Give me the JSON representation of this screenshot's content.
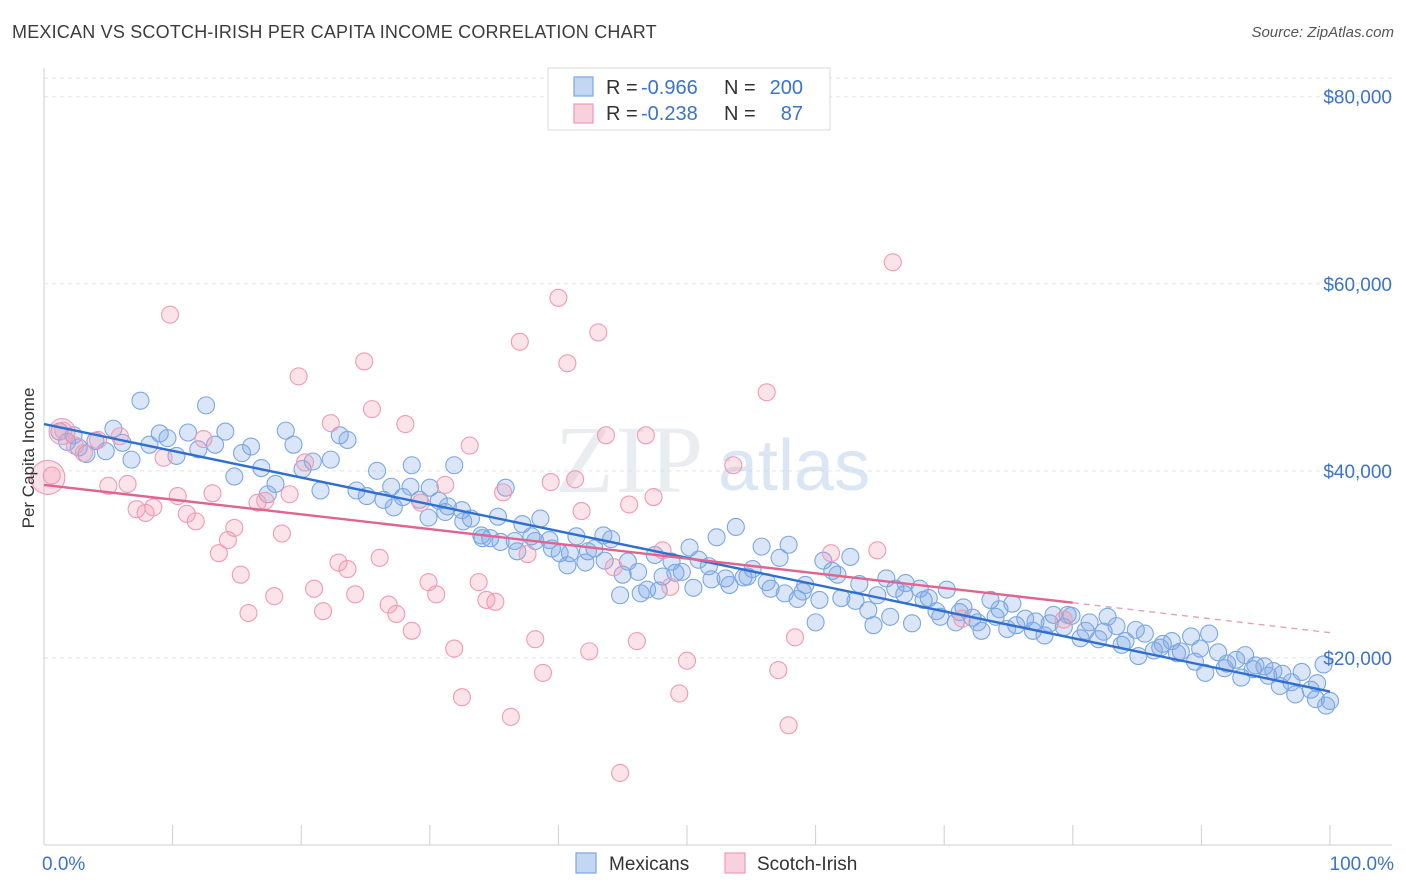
{
  "title": "MEXICAN VS SCOTCH-IRISH PER CAPITA INCOME CORRELATION CHART",
  "source": "Source: ZipAtlas.com",
  "watermark": {
    "zip": "ZIP",
    "atlas": "atlas"
  },
  "legend_top": [
    {
      "r_label": "R =",
      "r_value": "-0.966",
      "n_label": "N =",
      "n_value": "200",
      "color": "#7ba7e3"
    },
    {
      "r_label": "R =",
      "r_value": "-0.238",
      "n_label": "N =",
      "n_value": "87",
      "color": "#f09ab5"
    }
  ],
  "legend_bottom": [
    {
      "label": "Mexicans",
      "color": "#7ba7e3"
    },
    {
      "label": "Scotch-Irish",
      "color": "#f09ab5"
    }
  ],
  "chart_data": {
    "type": "scatter",
    "title": "MEXICAN VS SCOTCH-IRISH PER CAPITA INCOME CORRELATION CHART",
    "xlabel": "",
    "ylabel": "Per Capita Income",
    "xlim": [
      0,
      100
    ],
    "ylim": [
      0,
      82000
    ],
    "x_tick_labels": [
      "0.0%",
      "100.0%"
    ],
    "y_ticks": [
      20000,
      40000,
      60000,
      80000
    ],
    "y_tick_labels": [
      "$20,000",
      "$40,000",
      "$60,000",
      "$80,000"
    ],
    "grid": true,
    "legend_position": "top-center",
    "series": [
      {
        "name": "Mexicans",
        "color": "#7ba7e3",
        "trend": {
          "x": [
            0,
            100
          ],
          "y": [
            45000,
            16400
          ]
        },
        "points": [
          [
            1.2,
            44200
          ],
          [
            1.8,
            43100
          ],
          [
            2.3,
            43800
          ],
          [
            2.7,
            42500
          ],
          [
            3.3,
            41800
          ],
          [
            4.0,
            43200
          ],
          [
            4.8,
            42100
          ],
          [
            5.4,
            44500
          ],
          [
            6.1,
            43000
          ],
          [
            6.8,
            41200
          ],
          [
            7.5,
            47500
          ],
          [
            8.2,
            42800
          ],
          [
            9.0,
            44000
          ],
          [
            9.6,
            43500
          ],
          [
            10.3,
            41600
          ],
          [
            11.2,
            44100
          ],
          [
            12.0,
            42300
          ],
          [
            12.6,
            47000
          ],
          [
            13.3,
            42800
          ],
          [
            14.1,
            44200
          ],
          [
            14.8,
            39400
          ],
          [
            15.4,
            41900
          ],
          [
            16.1,
            42600
          ],
          [
            16.9,
            40300
          ],
          [
            17.4,
            37500
          ],
          [
            18.0,
            38600
          ],
          [
            18.8,
            44300
          ],
          [
            19.4,
            42800
          ],
          [
            20.1,
            40200
          ],
          [
            20.9,
            41000
          ],
          [
            21.5,
            37900
          ],
          [
            22.3,
            41200
          ],
          [
            23.0,
            43800
          ],
          [
            23.6,
            43300
          ],
          [
            24.3,
            37900
          ],
          [
            25.1,
            37300
          ],
          [
            25.9,
            40000
          ],
          [
            26.4,
            36900
          ],
          [
            27.2,
            36100
          ],
          [
            27.9,
            37200
          ],
          [
            28.6,
            40600
          ],
          [
            29.2,
            36900
          ],
          [
            30.0,
            38200
          ],
          [
            30.7,
            36800
          ],
          [
            31.4,
            36200
          ],
          [
            31.9,
            40600
          ],
          [
            32.5,
            35800
          ],
          [
            33.2,
            34900
          ],
          [
            34.0,
            33100
          ],
          [
            34.7,
            32800
          ],
          [
            35.3,
            35100
          ],
          [
            35.9,
            38200
          ],
          [
            36.6,
            32500
          ],
          [
            37.2,
            34300
          ],
          [
            37.9,
            33000
          ],
          [
            38.6,
            34900
          ],
          [
            39.3,
            32600
          ],
          [
            40.1,
            31200
          ],
          [
            40.7,
            29900
          ],
          [
            41.4,
            33000
          ],
          [
            42.1,
            30200
          ],
          [
            42.8,
            31700
          ],
          [
            43.5,
            33100
          ],
          [
            44.1,
            32700
          ],
          [
            44.8,
            26700
          ],
          [
            45.4,
            30300
          ],
          [
            46.2,
            29200
          ],
          [
            46.9,
            27300
          ],
          [
            47.5,
            31000
          ],
          [
            48.1,
            28700
          ],
          [
            48.8,
            30300
          ],
          [
            49.6,
            29200
          ],
          [
            50.2,
            31800
          ],
          [
            50.9,
            30500
          ],
          [
            51.7,
            29800
          ],
          [
            52.3,
            32900
          ],
          [
            53.0,
            28500
          ],
          [
            53.8,
            34000
          ],
          [
            54.4,
            28600
          ],
          [
            55.1,
            29500
          ],
          [
            55.8,
            31900
          ],
          [
            56.5,
            27400
          ],
          [
            57.2,
            30700
          ],
          [
            57.9,
            32100
          ],
          [
            58.6,
            26300
          ],
          [
            59.2,
            27800
          ],
          [
            60.0,
            23800
          ],
          [
            60.6,
            30400
          ],
          [
            61.3,
            29300
          ],
          [
            62.0,
            26400
          ],
          [
            62.7,
            30800
          ],
          [
            63.4,
            27900
          ],
          [
            64.1,
            25100
          ],
          [
            64.8,
            26700
          ],
          [
            65.5,
            28500
          ],
          [
            66.2,
            27400
          ],
          [
            66.9,
            26800
          ],
          [
            67.5,
            23700
          ],
          [
            68.1,
            27400
          ],
          [
            68.8,
            26400
          ],
          [
            69.4,
            25000
          ],
          [
            70.2,
            27300
          ],
          [
            70.9,
            23800
          ],
          [
            71.5,
            25400
          ],
          [
            72.2,
            24300
          ],
          [
            72.9,
            22900
          ],
          [
            73.6,
            26200
          ],
          [
            74.3,
            25200
          ],
          [
            74.9,
            23100
          ],
          [
            75.6,
            23500
          ],
          [
            76.3,
            24200
          ],
          [
            77.1,
            23900
          ],
          [
            77.8,
            22400
          ],
          [
            78.5,
            24600
          ],
          [
            79.3,
            23300
          ],
          [
            79.9,
            24500
          ],
          [
            80.6,
            22100
          ],
          [
            81.3,
            23800
          ],
          [
            82.0,
            22000
          ],
          [
            82.7,
            24400
          ],
          [
            83.4,
            23400
          ],
          [
            84.1,
            21800
          ],
          [
            84.9,
            23000
          ],
          [
            85.6,
            22600
          ],
          [
            86.3,
            20800
          ],
          [
            87.0,
            21500
          ],
          [
            87.7,
            21800
          ],
          [
            88.4,
            20700
          ],
          [
            89.2,
            22300
          ],
          [
            89.9,
            21000
          ],
          [
            90.6,
            22600
          ],
          [
            91.3,
            20600
          ],
          [
            92.0,
            19400
          ],
          [
            92.7,
            19800
          ],
          [
            93.4,
            20300
          ],
          [
            94.2,
            19200
          ],
          [
            94.9,
            19100
          ],
          [
            95.6,
            18600
          ],
          [
            96.3,
            18300
          ],
          [
            97.0,
            17400
          ],
          [
            97.8,
            18500
          ],
          [
            98.5,
            16600
          ],
          [
            99.0,
            17300
          ],
          [
            99.5,
            19300
          ],
          [
            100.0,
            15400
          ],
          [
            99.7,
            14900
          ],
          [
            98.9,
            15600
          ],
          [
            97.3,
            16100
          ],
          [
            96.1,
            17000
          ],
          [
            95.2,
            18100
          ],
          [
            94.0,
            18800
          ],
          [
            93.1,
            17900
          ],
          [
            91.8,
            18900
          ],
          [
            90.3,
            18400
          ],
          [
            89.5,
            19600
          ],
          [
            88.1,
            20500
          ],
          [
            86.8,
            21100
          ],
          [
            85.1,
            20200
          ],
          [
            83.8,
            21400
          ],
          [
            82.4,
            22800
          ],
          [
            81.0,
            22900
          ],
          [
            79.6,
            24600
          ],
          [
            78.2,
            23700
          ],
          [
            76.9,
            22900
          ],
          [
            75.3,
            25800
          ],
          [
            74.0,
            24400
          ],
          [
            72.6,
            23800
          ],
          [
            71.2,
            24900
          ],
          [
            69.7,
            24400
          ],
          [
            68.4,
            26200
          ],
          [
            67.0,
            28000
          ],
          [
            65.8,
            24400
          ],
          [
            64.5,
            23500
          ],
          [
            63.1,
            26100
          ],
          [
            61.7,
            28900
          ],
          [
            60.3,
            26200
          ],
          [
            59.0,
            27100
          ],
          [
            57.6,
            26900
          ],
          [
            56.2,
            28100
          ],
          [
            54.7,
            28700
          ],
          [
            53.3,
            27800
          ],
          [
            51.9,
            28400
          ],
          [
            50.5,
            27500
          ],
          [
            49.1,
            29100
          ],
          [
            47.8,
            27200
          ],
          [
            46.4,
            26900
          ],
          [
            45.0,
            28900
          ],
          [
            43.6,
            30400
          ],
          [
            42.3,
            31400
          ],
          [
            40.9,
            31200
          ],
          [
            39.5,
            31700
          ],
          [
            38.2,
            32500
          ],
          [
            36.8,
            31400
          ],
          [
            35.5,
            32400
          ],
          [
            34.1,
            32800
          ],
          [
            32.6,
            34600
          ],
          [
            31.2,
            35600
          ],
          [
            29.9,
            35000
          ],
          [
            28.5,
            38300
          ],
          [
            27.0,
            38300
          ]
        ]
      },
      {
        "name": "Scotch-Irish",
        "color": "#f09ab5",
        "trend": {
          "x": [
            0,
            80
          ],
          "y": [
            38500,
            25900
          ]
        },
        "trend_dashed": {
          "x": [
            80,
            100
          ],
          "y": [
            25900,
            22700
          ]
        },
        "points": [
          [
            0.6,
            39500
          ],
          [
            1.5,
            44300
          ],
          [
            2.4,
            42700
          ],
          [
            3.1,
            41900
          ],
          [
            4.2,
            43300
          ],
          [
            5.0,
            38400
          ],
          [
            5.9,
            43700
          ],
          [
            6.5,
            38600
          ],
          [
            7.2,
            35900
          ],
          [
            7.9,
            35500
          ],
          [
            8.5,
            36100
          ],
          [
            9.3,
            41400
          ],
          [
            9.8,
            56700
          ],
          [
            10.4,
            37300
          ],
          [
            11.1,
            35400
          ],
          [
            11.8,
            34600
          ],
          [
            12.4,
            43400
          ],
          [
            13.1,
            37600
          ],
          [
            13.6,
            31200
          ],
          [
            14.3,
            32600
          ],
          [
            14.8,
            33900
          ],
          [
            15.3,
            28900
          ],
          [
            15.9,
            24800
          ],
          [
            16.6,
            36600
          ],
          [
            17.2,
            36800
          ],
          [
            17.9,
            26600
          ],
          [
            18.5,
            33300
          ],
          [
            19.1,
            37500
          ],
          [
            19.8,
            50100
          ],
          [
            20.3,
            40900
          ],
          [
            21.0,
            27400
          ],
          [
            21.7,
            25000
          ],
          [
            22.3,
            45100
          ],
          [
            22.9,
            30200
          ],
          [
            23.6,
            29500
          ],
          [
            24.2,
            26800
          ],
          [
            24.9,
            51700
          ],
          [
            25.5,
            46600
          ],
          [
            26.1,
            30700
          ],
          [
            26.8,
            25700
          ],
          [
            27.4,
            24700
          ],
          [
            28.1,
            45000
          ],
          [
            28.6,
            22900
          ],
          [
            29.3,
            36600
          ],
          [
            29.9,
            28100
          ],
          [
            30.5,
            26800
          ],
          [
            31.2,
            38500
          ],
          [
            31.9,
            21000
          ],
          [
            32.5,
            15800
          ],
          [
            33.1,
            42700
          ],
          [
            33.8,
            28100
          ],
          [
            34.4,
            26200
          ],
          [
            35.1,
            26000
          ],
          [
            35.7,
            37700
          ],
          [
            36.3,
            13700
          ],
          [
            37.0,
            53800
          ],
          [
            37.6,
            31100
          ],
          [
            38.2,
            22000
          ],
          [
            38.8,
            18400
          ],
          [
            39.4,
            38800
          ],
          [
            40.0,
            58500
          ],
          [
            40.7,
            51500
          ],
          [
            41.3,
            39100
          ],
          [
            41.8,
            35700
          ],
          [
            42.4,
            20700
          ],
          [
            43.1,
            54800
          ],
          [
            43.7,
            43800
          ],
          [
            44.3,
            29700
          ],
          [
            44.8,
            7700
          ],
          [
            45.5,
            36400
          ],
          [
            46.1,
            21800
          ],
          [
            46.8,
            43800
          ],
          [
            47.4,
            37200
          ],
          [
            48.1,
            31500
          ],
          [
            48.7,
            27600
          ],
          [
            49.4,
            16200
          ],
          [
            50.0,
            19700
          ],
          [
            53.6,
            40600
          ],
          [
            56.2,
            48400
          ],
          [
            57.1,
            18700
          ],
          [
            57.9,
            12800
          ],
          [
            58.4,
            22200
          ],
          [
            61.2,
            31200
          ],
          [
            64.8,
            31500
          ],
          [
            66.0,
            62300
          ],
          [
            71.4,
            24200
          ],
          [
            79.3,
            24100
          ]
        ]
      }
    ]
  }
}
